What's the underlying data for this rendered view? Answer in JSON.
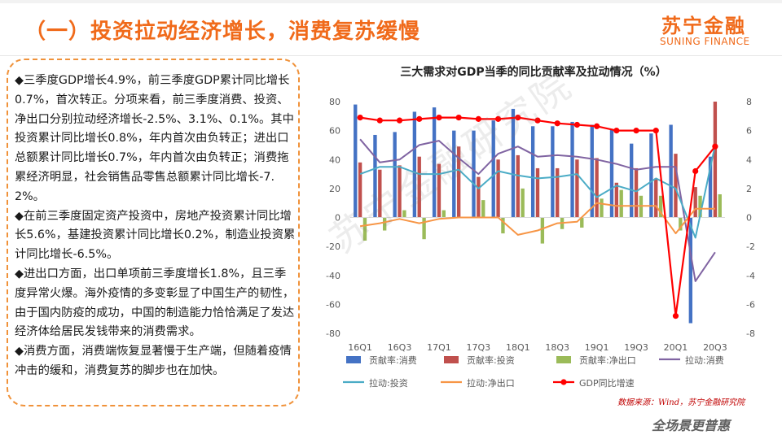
{
  "header": {
    "title": "（一）投资拉动经济增长，消费复苏缓慢",
    "logo_cn": "苏宁金融",
    "logo_en": "SUNING FINANCE"
  },
  "text_box": {
    "paragraphs": [
      "◆三季度GDP增长4.9%，前三季度GDP累计同比增长0.7%，首次转正。分项来看，前三季度消费、投资、净出口分别拉动经济增长-2.5%、3.1%、0.1%。其中投资累计同比增长0.8%，年内首次由负转正；进出口总额累计同比增长0.7%，年内首次由负转正；消费拖累经济明显，社会销售品零售总额累计同比增长-7.2%。",
      "◆在前三季度固定资产投资中，房地产投资累计同比增长5.6%，基建投资累计同比增长0.2%，制造业投资累计同比增长-6.5%。",
      "◆进出口方面，出口单项前三季度增长1.8%，且三季度异常火爆。海外疫情的多变彰显了中国生产的韧性，由于国内防疫的成功，中国的制造能力恰恰满足了发达经济体给居民发钱带来的消费需求。",
      "◆消费方面，消费端恢复显著慢于生产端，但随着疫情冲击的缓和，消费复苏的脚步也在加快。"
    ]
  },
  "chart_data": {
    "type": "bar",
    "title": "三大需求对GDP当季的同比贡献率及拉动情况（%）",
    "categories": [
      "16Q1",
      "16Q2",
      "16Q3",
      "16Q4",
      "17Q1",
      "17Q2",
      "17Q3",
      "17Q4",
      "18Q1",
      "18Q2",
      "18Q3",
      "18Q4",
      "19Q1",
      "19Q2",
      "19Q3",
      "19Q4",
      "20Q1",
      "20Q2",
      "20Q3"
    ],
    "x_tick_labels": [
      "16Q1",
      "16Q3",
      "17Q1",
      "17Q3",
      "18Q1",
      "18Q3",
      "19Q1",
      "19Q3",
      "20Q1",
      "20Q3"
    ],
    "y_left": {
      "min": -80,
      "max": 80,
      "step": 20
    },
    "y_right": {
      "min": -8,
      "max": 8,
      "step": 2
    },
    "bar_series": [
      {
        "name": "贡献率:消费",
        "color": "#4472c4",
        "axis": "left",
        "values": [
          78,
          57,
          59,
          73,
          76,
          60,
          60,
          67,
          75,
          63,
          63,
          66,
          64,
          61,
          51,
          58,
          64,
          -73,
          42
        ]
      },
      {
        "name": "贡献率:投资",
        "color": "#c0504d",
        "axis": "left",
        "values": [
          38,
          33,
          36,
          42,
          37,
          49,
          28,
          40,
          43,
          34,
          34,
          40,
          41,
          24,
          34,
          27,
          44,
          21,
          80
        ]
      },
      {
        "name": "贡献率:净出口",
        "color": "#9bbb59",
        "axis": "left",
        "values": [
          -16,
          -9,
          5,
          -15,
          5,
          0,
          12,
          -11,
          20,
          -18,
          -8,
          -7,
          13,
          19,
          15,
          15,
          -9,
          15,
          16
        ]
      }
    ],
    "line_series": [
      {
        "name": "拉动:消费",
        "color": "#8064a2",
        "axis": "right",
        "values": [
          5.4,
          3.8,
          4.0,
          5.0,
          5.3,
          4.1,
          3.0,
          4.4,
          4.9,
          4.2,
          4.3,
          4.2,
          4.0,
          3.7,
          3.3,
          3.5,
          3.5,
          -4.4,
          -2.4
        ]
      },
      {
        "name": "拉动:投资",
        "color": "#4bacc6",
        "axis": "right",
        "values": [
          3.0,
          3.5,
          3.5,
          3.0,
          3.0,
          3.3,
          2.0,
          3.2,
          2.9,
          2.7,
          2.8,
          3.0,
          1.4,
          2.2,
          1.8,
          2.7,
          2.0,
          -1.4,
          5.0
        ]
      },
      {
        "name": "拉动:净出口",
        "color": "#f79646",
        "axis": "right",
        "values": [
          -0.6,
          -0.4,
          -0.1,
          -0.4,
          -0.1,
          0.0,
          0.0,
          0.0,
          -1.2,
          -0.9,
          -0.4,
          -0.3,
          1.0,
          0.8,
          0.8,
          0.8,
          -1.1,
          0.6,
          0.6
        ]
      },
      {
        "name": "GDP同比增速",
        "color": "#ff0000",
        "axis": "right",
        "markers": true,
        "values": [
          6.9,
          6.7,
          6.7,
          6.8,
          6.9,
          6.9,
          6.8,
          6.8,
          6.9,
          6.7,
          6.5,
          6.4,
          6.3,
          6.0,
          6.0,
          6.0,
          -6.8,
          3.2,
          4.9
        ]
      }
    ],
    "legend_position": "bottom",
    "grid": false
  },
  "source": "数据来源：Wind，苏宁金融研究院",
  "slogan": "全场景更普惠",
  "watermark": "苏宁金融研究院"
}
